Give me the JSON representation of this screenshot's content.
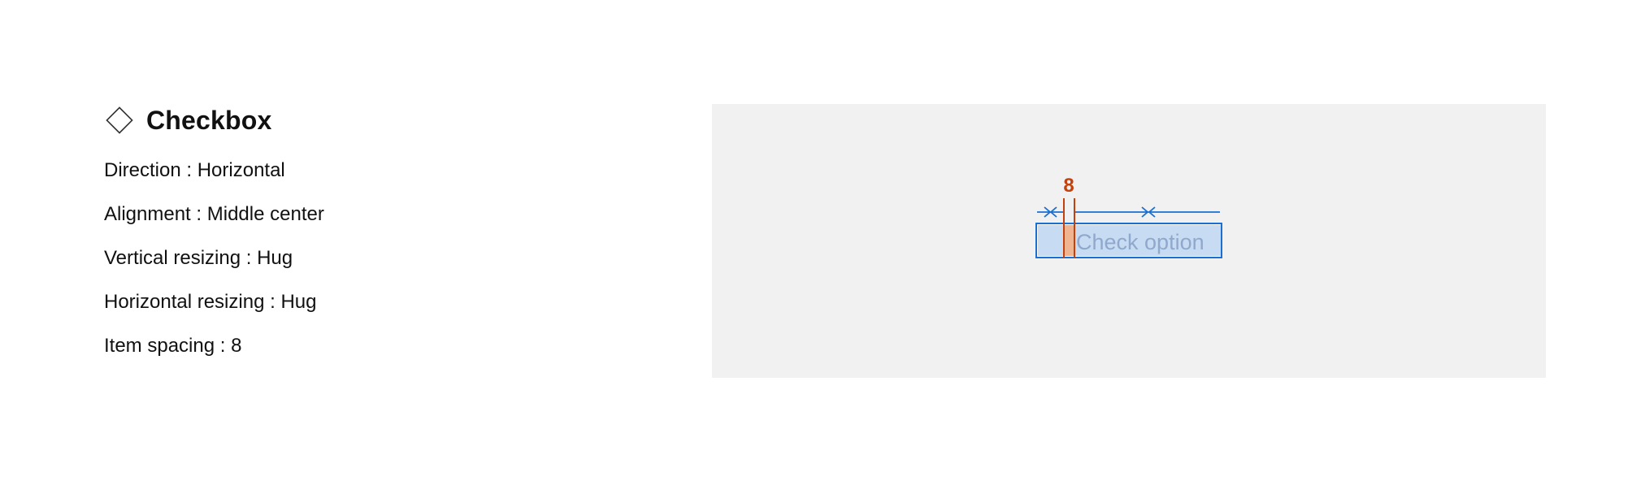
{
  "component": {
    "title": "Checkbox",
    "icon": "diamond-component-icon"
  },
  "properties": {
    "direction": {
      "label": "Direction",
      "value": "Horizontal"
    },
    "alignment": {
      "label": "Alignment",
      "value": "Middle center"
    },
    "vertical_resizing": {
      "label": "Vertical resizing",
      "value": "Hug"
    },
    "horizontal_resizing": {
      "label": "Horizontal resizing",
      "value": "Hug"
    },
    "item_spacing": {
      "label": "Item spacing",
      "value": "8"
    }
  },
  "preview": {
    "spacing_value": "8",
    "option_text": "Check option",
    "colors": {
      "canvas": "#f1f1f1",
      "measure_blue": "#1a6fd1",
      "fill_blue": "#c7dbf3",
      "spacing_orange": "#c2410c",
      "spacing_fill": "#f0b590",
      "option_text": "#8fa8cc"
    }
  }
}
